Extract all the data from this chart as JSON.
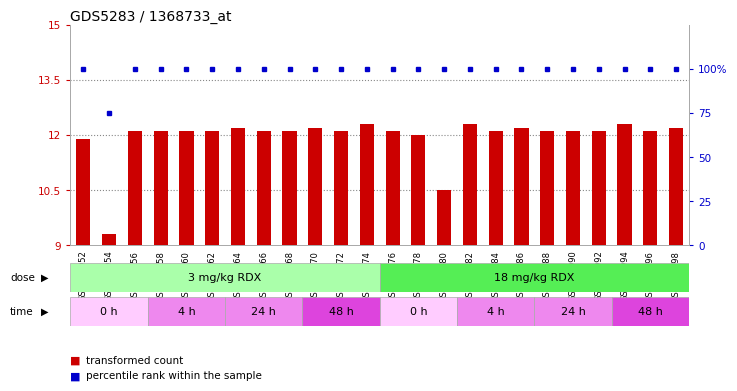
{
  "title": "GDS5283 / 1368733_at",
  "samples": [
    "GSM306952",
    "GSM306954",
    "GSM306956",
    "GSM306958",
    "GSM306960",
    "GSM306962",
    "GSM306964",
    "GSM306966",
    "GSM306968",
    "GSM306970",
    "GSM306972",
    "GSM306974",
    "GSM306976",
    "GSM306978",
    "GSM306980",
    "GSM306982",
    "GSM306984",
    "GSM306986",
    "GSM306988",
    "GSM306990",
    "GSM306992",
    "GSM306994",
    "GSM306996",
    "GSM306998"
  ],
  "bar_values": [
    11.9,
    9.3,
    12.1,
    12.1,
    12.1,
    12.1,
    12.2,
    12.1,
    12.1,
    12.2,
    12.1,
    12.3,
    12.1,
    12.0,
    10.5,
    12.3,
    12.1,
    12.2,
    12.1,
    12.1,
    12.1,
    12.3,
    12.1,
    12.2
  ],
  "percentile_values": [
    100,
    75,
    100,
    100,
    100,
    100,
    100,
    100,
    100,
    100,
    100,
    100,
    100,
    100,
    100,
    100,
    100,
    100,
    100,
    100,
    100,
    100,
    100,
    100
  ],
  "bar_color": "#cc0000",
  "percentile_color": "#0000cc",
  "ylim_min": 9,
  "ylim_max": 15,
  "yticks": [
    9,
    10.5,
    12,
    13.5,
    15
  ],
  "right_yticks": [
    0,
    25,
    50,
    75,
    100
  ],
  "right_yticklabels": [
    "0",
    "25",
    "50",
    "75",
    "100%"
  ],
  "dose_groups": [
    {
      "label": "3 mg/kg RDX",
      "start": 0,
      "end": 12,
      "color": "#aaffaa"
    },
    {
      "label": "18 mg/kg RDX",
      "start": 12,
      "end": 24,
      "color": "#55ee55"
    }
  ],
  "time_groups": [
    {
      "label": "0 h",
      "start": 0,
      "end": 3,
      "color": "#ffccff"
    },
    {
      "label": "4 h",
      "start": 3,
      "end": 6,
      "color": "#ee88ee"
    },
    {
      "label": "24 h",
      "start": 6,
      "end": 9,
      "color": "#ee88ee"
    },
    {
      "label": "48 h",
      "start": 9,
      "end": 12,
      "color": "#dd44dd"
    },
    {
      "label": "0 h",
      "start": 12,
      "end": 15,
      "color": "#ffccff"
    },
    {
      "label": "4 h",
      "start": 15,
      "end": 18,
      "color": "#ee88ee"
    },
    {
      "label": "24 h",
      "start": 18,
      "end": 21,
      "color": "#ee88ee"
    },
    {
      "label": "48 h",
      "start": 21,
      "end": 24,
      "color": "#dd44dd"
    }
  ],
  "legend_items": [
    {
      "label": "transformed count",
      "color": "#cc0000"
    },
    {
      "label": "percentile rank within the sample",
      "color": "#0000cc"
    }
  ],
  "bg_color": "#ffffff",
  "grid_color": "#888888",
  "tick_color_left": "#cc0000",
  "tick_color_right": "#0000cc",
  "title_fontsize": 10,
  "axis_fontsize": 7.5,
  "bar_width": 0.55
}
